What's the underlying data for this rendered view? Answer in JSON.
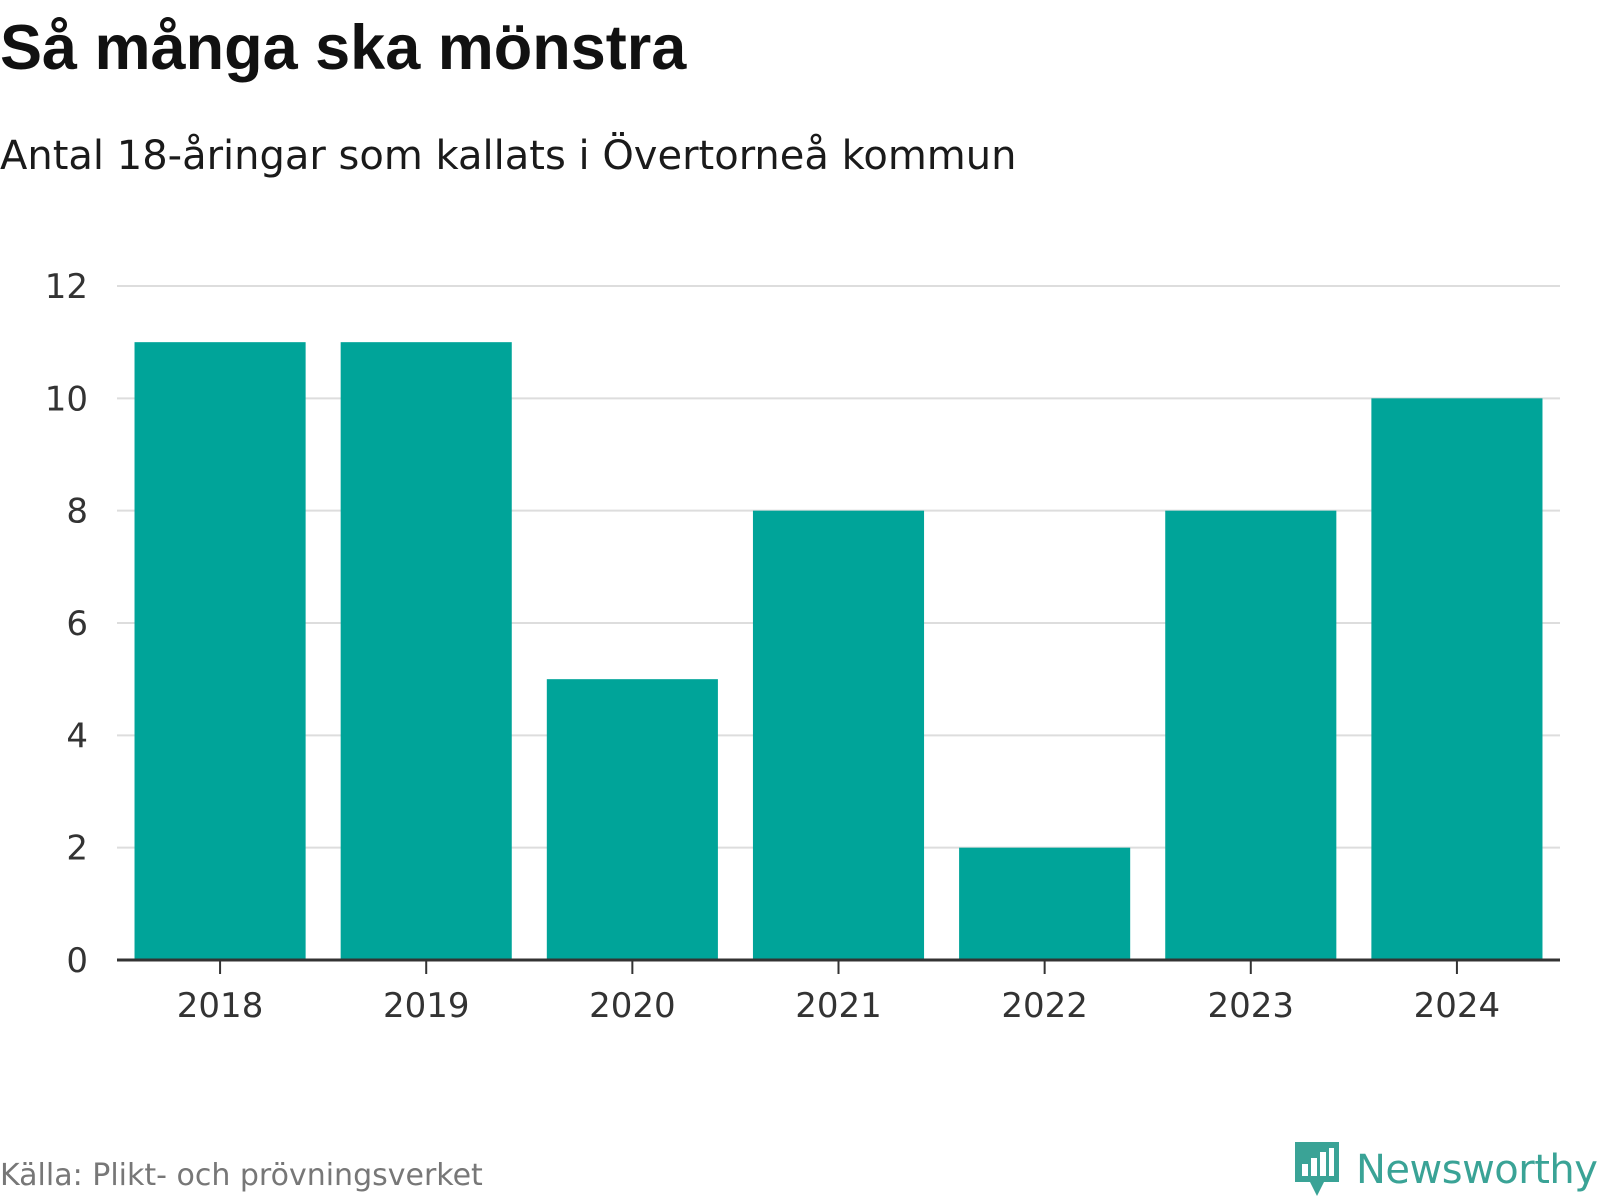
{
  "header": {
    "title": "Så många ska mönstra",
    "subtitle": "Antal 18-åringar som kallats i Övertorneå kommun"
  },
  "footer": {
    "source": "Källa: Plikt- och prövningsverket",
    "brand": "Newsworthy"
  },
  "colors": {
    "bar": "#00a499",
    "grid": "#dddddd",
    "axis": "#333333",
    "brand": "#3aa396"
  },
  "chart_data": {
    "type": "bar",
    "categories": [
      "2018",
      "2019",
      "2020",
      "2021",
      "2022",
      "2023",
      "2024"
    ],
    "values": [
      11,
      11,
      5,
      8,
      2,
      8,
      10
    ],
    "ylim": [
      0,
      12
    ],
    "yticks": [
      0,
      2,
      4,
      6,
      8,
      10,
      12
    ],
    "grid": true,
    "title": "Så många ska mönstra",
    "subtitle": "Antal 18-åringar som kallats i Övertorneå kommun"
  }
}
